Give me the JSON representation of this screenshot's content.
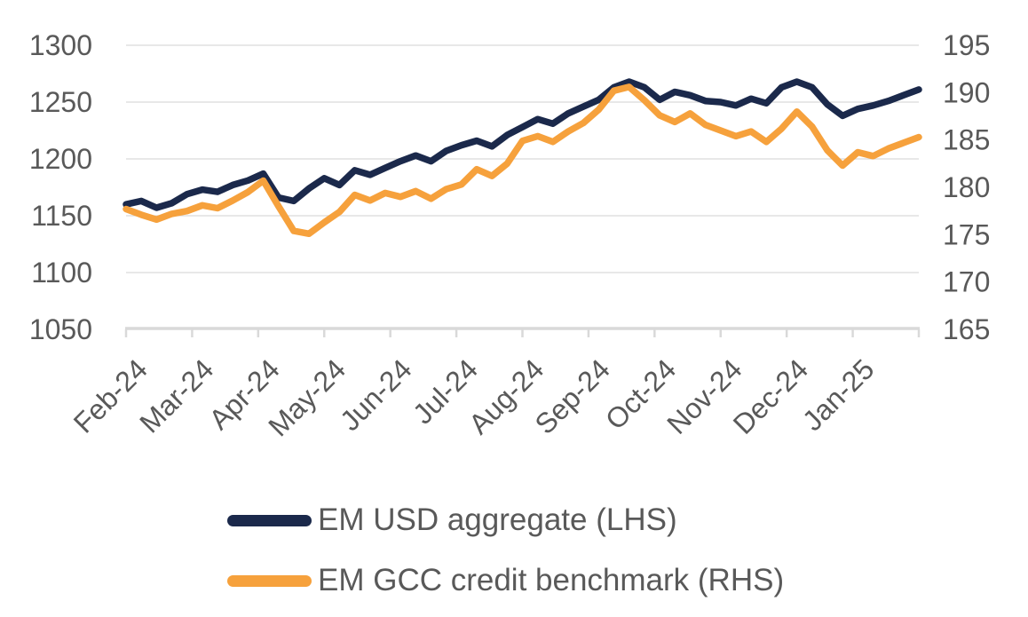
{
  "chart_data": {
    "type": "line",
    "title": "",
    "x_labels": [
      "Feb-24",
      "Mar-24",
      "Apr-24",
      "May-24",
      "Jun-24",
      "Jul-24",
      "Aug-24",
      "Sep-24",
      "Oct-24",
      "Nov-24",
      "Dec-24",
      "Jan-25"
    ],
    "sampling": "weekly points, Feb-2024 through Jan-2025",
    "series": [
      {
        "name": "EM USD aggregate (LHS)",
        "axis": "left",
        "color": "#1B294B",
        "values": [
          1160,
          1163,
          1157,
          1161,
          1169,
          1173,
          1171,
          1177,
          1181,
          1187,
          1166,
          1163,
          1174,
          1183,
          1177,
          1190,
          1186,
          1192,
          1198,
          1203,
          1198,
          1207,
          1212,
          1216,
          1211,
          1221,
          1228,
          1235,
          1231,
          1240,
          1246,
          1252,
          1263,
          1268,
          1263,
          1252,
          1259,
          1256,
          1251,
          1250,
          1247,
          1253,
          1249,
          1263,
          1268,
          1263,
          1248,
          1238,
          1244,
          1247,
          1251,
          1256,
          1261
        ]
      },
      {
        "name": "EM GCC credit benchmark (RHS)",
        "axis": "right",
        "color": "#F6A13C",
        "values": [
          177.7,
          177.1,
          176.6,
          177.2,
          177.5,
          178.1,
          177.8,
          178.6,
          179.5,
          180.7,
          178.0,
          175.4,
          175.1,
          176.3,
          177.4,
          179.2,
          178.6,
          179.4,
          179.0,
          179.6,
          178.8,
          179.8,
          180.3,
          181.9,
          181.2,
          182.5,
          184.9,
          185.4,
          184.8,
          185.9,
          186.8,
          188.2,
          190.2,
          190.6,
          189.2,
          187.6,
          186.9,
          187.8,
          186.6,
          186.0,
          185.4,
          185.9,
          184.8,
          186.2,
          188.0,
          186.4,
          183.9,
          182.3,
          183.7,
          183.3,
          184.1,
          184.7,
          185.3
        ]
      }
    ],
    "left_axis": {
      "min": 1050,
      "max": 1300,
      "ticks": [
        1300,
        1250,
        1200,
        1150,
        1100,
        1050
      ]
    },
    "right_axis": {
      "min": 165,
      "max": 195,
      "ticks": [
        195,
        190,
        185,
        180,
        175,
        170,
        165
      ]
    },
    "grid": true,
    "legend_position": "bottom-left"
  },
  "styles": {
    "axis_text_color": "#595959",
    "grid_color": "#D9D9D9",
    "axis_line_color": "#D9D9D9",
    "background": "#FFFFFF",
    "series_line_width": 7.5
  }
}
